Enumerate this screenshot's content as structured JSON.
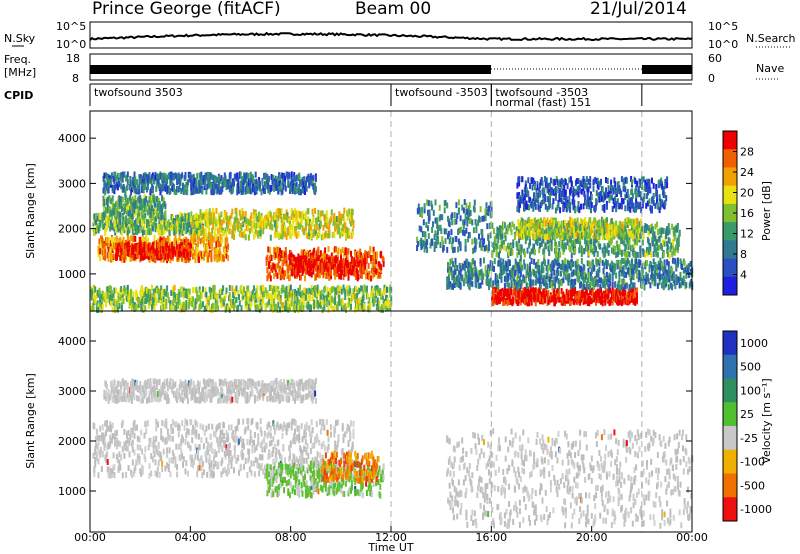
{
  "header": {
    "station": "Prince George (fitACF)",
    "beam": "Beam 00",
    "date": "21/Jul/2014"
  },
  "noise_panel": {
    "left_label": "N.Sky",
    "right_label": "N.Search",
    "left_ticks": [
      "10^5",
      "10^0"
    ],
    "right_ticks": [
      "10^5",
      "10^0"
    ]
  },
  "freq_panel": {
    "left_label_1": "Freq.",
    "left_label_2": "[MHz]",
    "left_ticks": [
      "18",
      "8"
    ],
    "right_ticks": [
      "60",
      "0"
    ],
    "right_label": "Nave"
  },
  "cpid_panel": {
    "label": "CPID",
    "segments": [
      {
        "start": 0,
        "end": 12,
        "label": "twofsound 3503",
        "row": 0
      },
      {
        "start": 12,
        "end": 16,
        "label": "twofsound -3503",
        "row": 0
      },
      {
        "start": 16,
        "end": 22,
        "label": "twofsound -3503",
        "row": 0
      },
      {
        "start": 16,
        "end": 22,
        "label": "normal (fast) 151",
        "row": 1
      }
    ]
  },
  "chart_data": [
    {
      "type": "heatmap",
      "name": "power",
      "ylabel": "Slant Range [km]",
      "xlabel": "",
      "x_range_hours": [
        0,
        24
      ],
      "ylim": [
        180,
        4600
      ],
      "yticks": [
        1000,
        2000,
        3000,
        4000
      ],
      "colorbar": {
        "label": "Power [dB]",
        "ticks": [
          4,
          8,
          12,
          16,
          20,
          24,
          28
        ],
        "range": [
          0,
          32
        ],
        "colors": [
          "#1f1fe0",
          "#2a4fc0",
          "#2f7a90",
          "#3a9a6a",
          "#7fbf30",
          "#e8e010",
          "#f0a000",
          "#f06000",
          "#ee0000"
        ]
      },
      "bands": [
        {
          "t0": 0.1,
          "t1": 4.5,
          "r0": 1900,
          "r1": 2300,
          "level": 0.45
        },
        {
          "t0": 0.3,
          "t1": 5.5,
          "r0": 1300,
          "r1": 1800,
          "level": 0.75
        },
        {
          "t0": 1.0,
          "t1": 4.0,
          "r0": 1350,
          "r1": 1650,
          "level": 0.95
        },
        {
          "t0": 4.0,
          "t1": 10.5,
          "r0": 1800,
          "r1": 2400,
          "level": 0.6
        },
        {
          "t0": 7.0,
          "t1": 11.7,
          "r0": 900,
          "r1": 1550,
          "level": 0.85
        },
        {
          "t0": 8.0,
          "t1": 11.0,
          "r0": 1000,
          "r1": 1350,
          "level": 0.97
        },
        {
          "t0": 0.5,
          "t1": 3.0,
          "r0": 2300,
          "r1": 2700,
          "level": 0.4
        },
        {
          "t0": 0.5,
          "t1": 9.0,
          "r0": 2800,
          "r1": 3200,
          "level": 0.25
        },
        {
          "t0": 16.0,
          "t1": 21.8,
          "r0": 350,
          "r1": 650,
          "level": 0.98
        },
        {
          "t0": 14.2,
          "t1": 24.0,
          "r0": 700,
          "r1": 1300,
          "level": 0.3
        },
        {
          "t0": 16.0,
          "t1": 23.5,
          "r0": 1400,
          "r1": 2100,
          "level": 0.4
        },
        {
          "t0": 17.0,
          "t1": 22.0,
          "r0": 1800,
          "r1": 2200,
          "level": 0.55
        },
        {
          "t0": 13.0,
          "t1": 16.0,
          "r0": 1500,
          "r1": 2600,
          "level": 0.3
        },
        {
          "t0": 17.0,
          "t1": 23.0,
          "r0": 2400,
          "r1": 3100,
          "level": 0.2
        },
        {
          "t0": 0.0,
          "t1": 12.0,
          "r0": 200,
          "r1": 700,
          "level": 0.5
        }
      ]
    },
    {
      "type": "heatmap",
      "name": "velocity",
      "ylabel": "Slant Range [km]",
      "xlabel": "Time UT",
      "x_range_hours": [
        0,
        24
      ],
      "ylim": [
        180,
        4600
      ],
      "yticks": [
        1000,
        2000,
        3000,
        4000
      ],
      "xtick_labels": [
        "00:00",
        "04:00",
        "08:00",
        "12:00",
        "16:00",
        "20:00",
        "00:00"
      ],
      "colorbar": {
        "label": "Velocity [m s⁻¹]",
        "ticks": [
          "1000",
          "500",
          "100",
          "25",
          "-25",
          "-100",
          "-500",
          "-1000"
        ],
        "colors": [
          "#2030c0",
          "#2f70b0",
          "#2e9060",
          "#50c030",
          "#c8c8c8",
          "#f0b000",
          "#f07000",
          "#ee1010"
        ]
      },
      "bands": [
        {
          "t0": 0.1,
          "t1": 10.5,
          "r0": 1300,
          "r1": 2400,
          "level": "gray"
        },
        {
          "t0": 7.0,
          "t1": 11.7,
          "r0": 900,
          "r1": 1550,
          "level": "green"
        },
        {
          "t0": 9.2,
          "t1": 11.5,
          "r0": 1200,
          "r1": 1750,
          "level": "orange"
        },
        {
          "t0": 14.2,
          "t1": 24.0,
          "r0": 300,
          "r1": 2200,
          "level": "gray"
        },
        {
          "t0": 0.5,
          "t1": 9.0,
          "r0": 2800,
          "r1": 3200,
          "level": "gray"
        }
      ]
    }
  ]
}
